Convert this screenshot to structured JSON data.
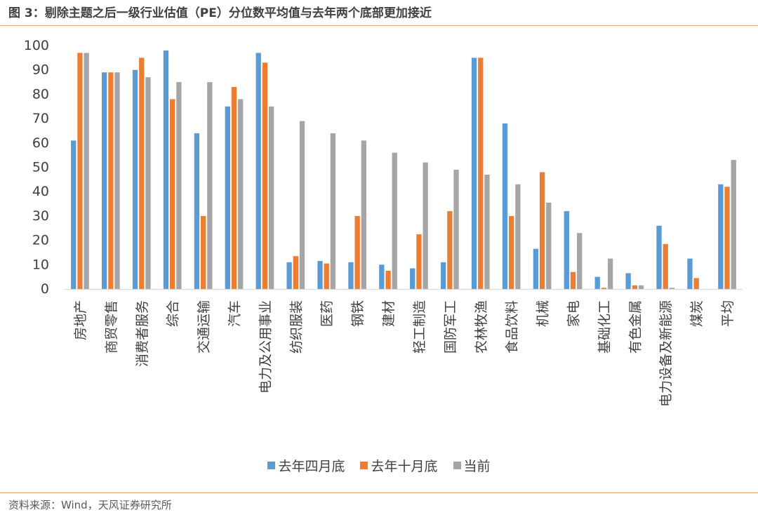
{
  "header": {
    "title": "图 3：剔除主题之后一级行业估值（PE）分位数平均值与去年两个底部更加接近"
  },
  "footer": {
    "source": "资料来源：Wind，天风证券研究所"
  },
  "chart_data": {
    "type": "bar",
    "title": "",
    "xlabel": "",
    "ylabel": "",
    "ylim": [
      0,
      100
    ],
    "yticks": [
      0,
      10,
      20,
      30,
      40,
      50,
      60,
      70,
      80,
      90,
      100
    ],
    "grid": false,
    "legend_position": "bottom",
    "categories": [
      "房地产",
      "商贸零售",
      "消费者服务",
      "综合",
      "交通运输",
      "汽车",
      "电力及公用事业",
      "纺织服装",
      "医药",
      "钢铁",
      "建材",
      "轻工制造",
      "国防军工",
      "农林牧渔",
      "食品饮料",
      "机械",
      "家电",
      "基础化工",
      "有色金属",
      "电力设备及新能源",
      "煤炭",
      "平均"
    ],
    "series": [
      {
        "name": "去年四月底",
        "color": "#5b9bd5",
        "values": [
          61,
          89,
          90,
          98,
          64,
          75,
          97,
          11,
          11.5,
          11,
          10,
          8.5,
          11,
          95,
          68,
          16.5,
          32,
          5,
          6.5,
          26,
          12.5,
          43
        ]
      },
      {
        "name": "去年十月底",
        "color": "#ed7d31",
        "values": [
          97,
          89,
          95,
          78,
          30,
          83,
          93,
          13.5,
          10.5,
          30,
          7.5,
          22.5,
          32,
          95,
          30,
          48,
          7,
          0.5,
          1.5,
          18.5,
          4.5,
          42
        ]
      },
      {
        "name": "当前",
        "color": "#a5a5a5",
        "values": [
          97,
          89,
          87,
          85,
          85,
          78,
          75,
          69,
          64,
          61,
          56,
          52,
          49,
          47,
          43,
          35.5,
          23,
          12.5,
          1.5,
          0.5,
          0,
          53
        ]
      }
    ]
  }
}
